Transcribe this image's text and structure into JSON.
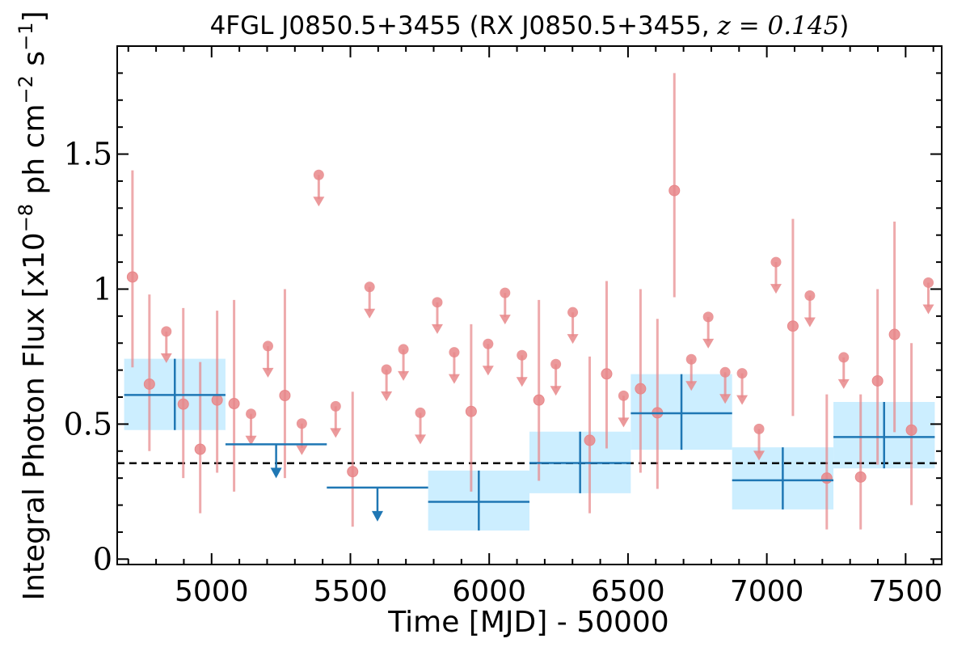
{
  "chart_data": {
    "type": "scatter",
    "title": "4FGL J0850.5+3455 (RX J0850.5+3455, ",
    "title_math": "z = 0.145",
    "title_close": ")",
    "xlabel": "Time [MJD] - 50000",
    "ylabel": "Integral Photon Flux [x10",
    "ylabel_exp": "−8",
    "ylabel_mid": " ph cm",
    "ylabel_exp2": "−2",
    "ylabel_end": " s",
    "ylabel_exp3": "−1",
    "ylabel_close": "]",
    "xlim": [
      4660,
      7630
    ],
    "ylim": [
      -0.02,
      1.9
    ],
    "x_ticks": [
      5000,
      5500,
      6000,
      6500,
      7000,
      7500
    ],
    "x_tick_labels": [
      "5000",
      "5500",
      "6000",
      "6500",
      "7000",
      "7500"
    ],
    "y_ticks": [
      0,
      0.5,
      1,
      1.5
    ],
    "y_tick_labels": [
      "0",
      "0.5",
      "1",
      "1.5"
    ],
    "grid": false,
    "colors": {
      "fine_bins": "#e8878a",
      "coarse_bins": "#1f77b4",
      "coarse_band": "#cceeff",
      "mean_line": "#000000"
    },
    "mean_flux": 0.355,
    "fine_detections": [
      {
        "x": 4715,
        "y": 1.045,
        "ylo": 0.71,
        "yhi": 1.44
      },
      {
        "x": 4776,
        "y": 0.648,
        "ylo": 0.4,
        "yhi": 0.98
      },
      {
        "x": 4898,
        "y": 0.574,
        "ylo": 0.3,
        "yhi": 0.93
      },
      {
        "x": 4959,
        "y": 0.407,
        "ylo": 0.17,
        "yhi": 0.73
      },
      {
        "x": 5020,
        "y": 0.589,
        "ylo": 0.32,
        "yhi": 0.92
      },
      {
        "x": 5081,
        "y": 0.576,
        "ylo": 0.25,
        "yhi": 0.96
      },
      {
        "x": 5264,
        "y": 0.606,
        "ylo": 0.3,
        "yhi": 1.0
      },
      {
        "x": 5508,
        "y": 0.324,
        "ylo": 0.12,
        "yhi": 0.62
      },
      {
        "x": 5935,
        "y": 0.547,
        "ylo": 0.25,
        "yhi": 0.87
      },
      {
        "x": 6179,
        "y": 0.589,
        "ylo": 0.29,
        "yhi": 0.96
      },
      {
        "x": 6362,
        "y": 0.44,
        "ylo": 0.17,
        "yhi": 0.75
      },
      {
        "x": 6423,
        "y": 0.686,
        "ylo": 0.41,
        "yhi": 1.03
      },
      {
        "x": 6545,
        "y": 0.631,
        "ylo": 0.32,
        "yhi": 1.0
      },
      {
        "x": 6606,
        "y": 0.542,
        "ylo": 0.26,
        "yhi": 0.89
      },
      {
        "x": 6667,
        "y": 1.365,
        "ylo": 0.97,
        "yhi": 1.8
      },
      {
        "x": 7094,
        "y": 0.863,
        "ylo": 0.53,
        "yhi": 1.26
      },
      {
        "x": 7216,
        "y": 0.3,
        "ylo": 0.11,
        "yhi": 0.61
      },
      {
        "x": 7338,
        "y": 0.304,
        "ylo": 0.11,
        "yhi": 0.61
      },
      {
        "x": 7399,
        "y": 0.66,
        "ylo": 0.35,
        "yhi": 1.0
      },
      {
        "x": 7460,
        "y": 0.832,
        "ylo": 0.47,
        "yhi": 1.25
      },
      {
        "x": 7521,
        "y": 0.478,
        "ylo": 0.2,
        "yhi": 0.8
      }
    ],
    "fine_upper_limits": [
      {
        "x": 4837,
        "y": 0.843
      },
      {
        "x": 5142,
        "y": 0.538
      },
      {
        "x": 5203,
        "y": 0.789
      },
      {
        "x": 5325,
        "y": 0.502
      },
      {
        "x": 5386,
        "y": 1.423
      },
      {
        "x": 5447,
        "y": 0.566
      },
      {
        "x": 5569,
        "y": 1.008
      },
      {
        "x": 5630,
        "y": 0.702
      },
      {
        "x": 5691,
        "y": 0.777
      },
      {
        "x": 5752,
        "y": 0.542
      },
      {
        "x": 5813,
        "y": 0.951
      },
      {
        "x": 5874,
        "y": 0.766
      },
      {
        "x": 5996,
        "y": 0.797
      },
      {
        "x": 6057,
        "y": 0.986
      },
      {
        "x": 6118,
        "y": 0.755
      },
      {
        "x": 6240,
        "y": 0.722
      },
      {
        "x": 6301,
        "y": 0.914
      },
      {
        "x": 6484,
        "y": 0.605
      },
      {
        "x": 6728,
        "y": 0.74
      },
      {
        "x": 6789,
        "y": 0.897
      },
      {
        "x": 6850,
        "y": 0.692
      },
      {
        "x": 6911,
        "y": 0.688
      },
      {
        "x": 6972,
        "y": 0.482
      },
      {
        "x": 7033,
        "y": 1.1
      },
      {
        "x": 7155,
        "y": 0.976
      },
      {
        "x": 7277,
        "y": 0.747
      },
      {
        "x": 7582,
        "y": 1.024
      }
    ],
    "coarse_detections": [
      {
        "x0": 4685,
        "x1": 5050,
        "y": 0.608,
        "ylo": 0.478,
        "yhi": 0.742
      },
      {
        "x0": 5780,
        "x1": 6145,
        "y": 0.212,
        "ylo": 0.106,
        "yhi": 0.328
      },
      {
        "x0": 6145,
        "x1": 6510,
        "y": 0.356,
        "ylo": 0.244,
        "yhi": 0.472
      },
      {
        "x0": 6510,
        "x1": 6875,
        "y": 0.54,
        "ylo": 0.405,
        "yhi": 0.685
      },
      {
        "x0": 6875,
        "x1": 7240,
        "y": 0.292,
        "ylo": 0.184,
        "yhi": 0.414
      },
      {
        "x0": 7240,
        "x1": 7605,
        "y": 0.452,
        "ylo": 0.336,
        "yhi": 0.582
      }
    ],
    "coarse_upper_limits": [
      {
        "x0": 5050,
        "x1": 5415,
        "y": 0.425
      },
      {
        "x0": 5415,
        "x1": 5780,
        "y": 0.265
      }
    ]
  }
}
